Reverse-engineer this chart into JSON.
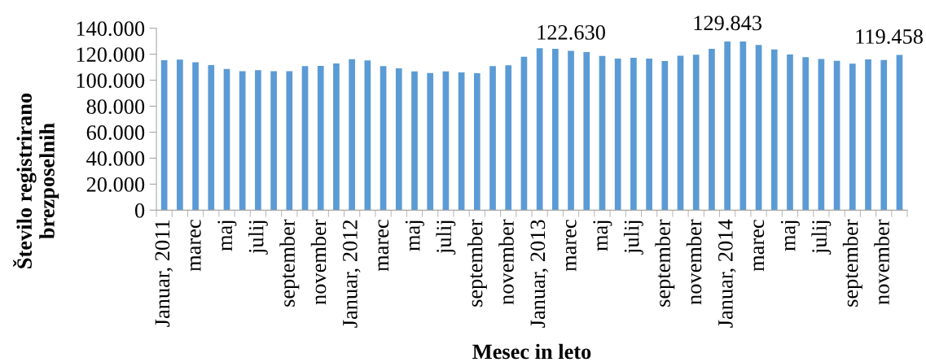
{
  "chart_data": {
    "type": "bar",
    "xlabel": "Mesec in leto",
    "ylabel": "Število registrirano\nbrezposelnih",
    "color": "#5b9bd5",
    "categories": [
      "Januar, 2011",
      null,
      "marec",
      null,
      "maj",
      null,
      "julij",
      null,
      "september",
      null,
      "november",
      null,
      "Januar, 2012",
      null,
      "marec",
      null,
      "maj",
      null,
      "julij",
      null,
      "september",
      null,
      "november",
      null,
      "Januar, 2013",
      null,
      "marec",
      null,
      "maj",
      null,
      "julij",
      null,
      "september",
      null,
      "november",
      null,
      "Januar, 2014",
      null,
      "marec",
      null,
      "maj",
      null,
      "julij",
      null,
      "september",
      null,
      "november",
      null
    ],
    "values": [
      115400,
      115800,
      113900,
      111600,
      108700,
      107000,
      107700,
      107000,
      107000,
      110800,
      111000,
      112900,
      116200,
      115200,
      110800,
      109100,
      106800,
      105600,
      106800,
      106000,
      105400,
      110800,
      111500,
      118100,
      124600,
      124200,
      122630,
      121700,
      118700,
      116600,
      117300,
      116600,
      114800,
      118900,
      119600,
      124200,
      129843,
      129800,
      127100,
      123700,
      119800,
      117700,
      116400,
      115000,
      112700,
      116000,
      115600,
      119458
    ],
    "value_labels": [
      null,
      null,
      null,
      null,
      null,
      null,
      null,
      null,
      null,
      null,
      null,
      null,
      null,
      null,
      null,
      null,
      null,
      null,
      null,
      null,
      null,
      null,
      null,
      null,
      null,
      null,
      "122.630",
      null,
      null,
      null,
      null,
      null,
      null,
      null,
      null,
      null,
      "129.843",
      null,
      null,
      null,
      null,
      null,
      null,
      null,
      null,
      null,
      null,
      "119.458"
    ],
    "ylim": [
      0,
      140000
    ],
    "yticks": [
      0,
      {
        "value": 20000,
        "label": "20.000"
      },
      {
        "value": 40000,
        "label": "40.000"
      },
      {
        "value": 60000,
        "label": "60.000"
      },
      {
        "value": 80000,
        "label": "80.000"
      },
      {
        "value": 100000,
        "label": "100.000"
      },
      {
        "value": 120000,
        "label": "120.000"
      },
      {
        "value": 140000,
        "label": "140.000"
      }
    ]
  }
}
